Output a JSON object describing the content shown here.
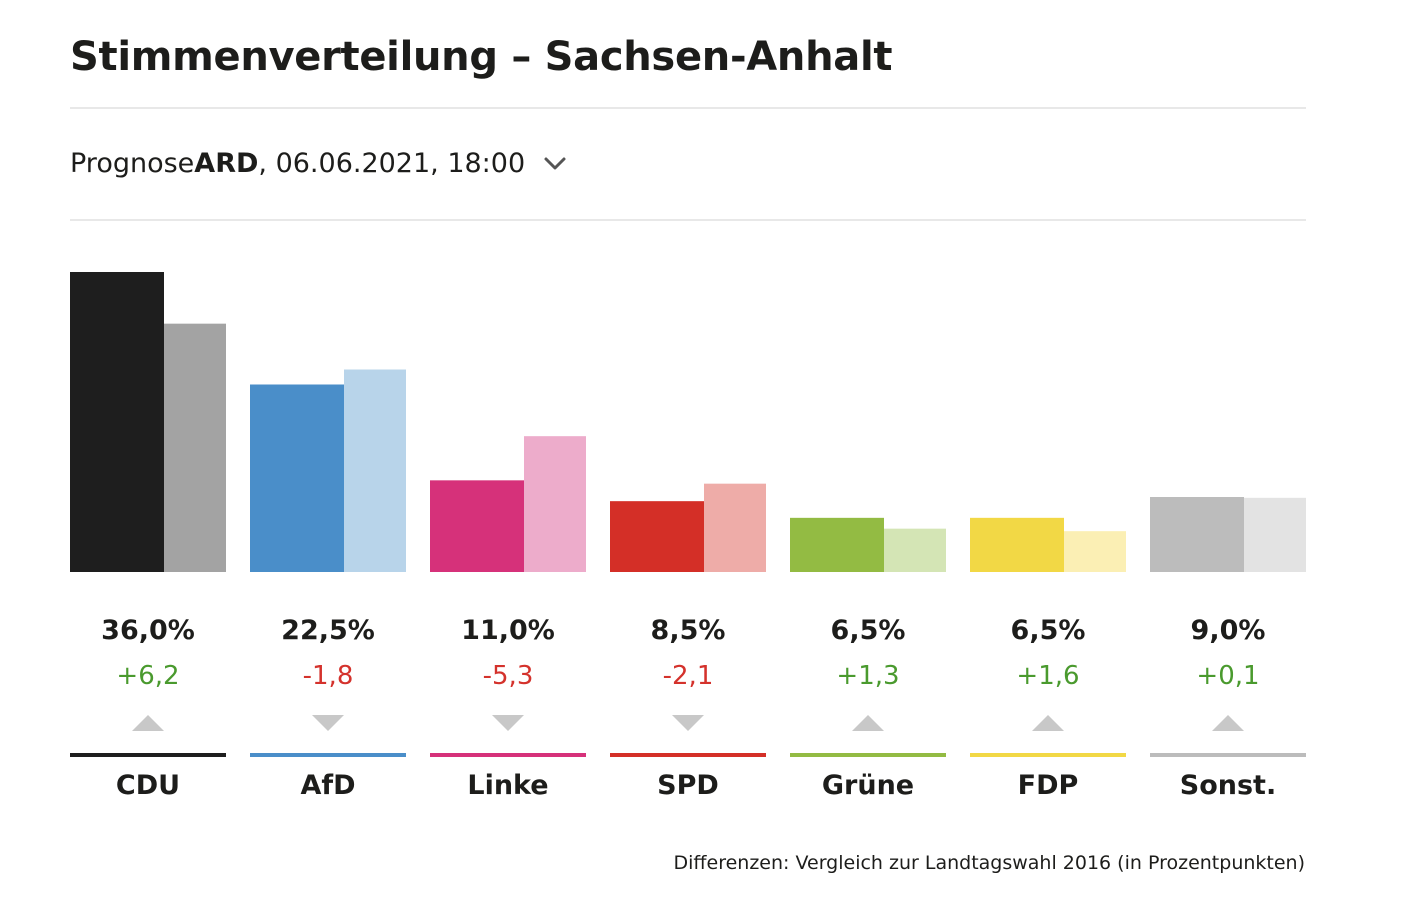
{
  "header": {
    "title": "Stimmenverteilung – Sachsen-Anhalt",
    "selector_prefix": "Prognose ",
    "selector_source": "ARD",
    "selector_suffix": ", 06.06.2021, 18:00"
  },
  "footnote": "Differenzen: Vergleich zur Landtagswahl 2016 (in Prozentpunkten)",
  "colors": {
    "positive": "#4a9a2e",
    "negative": "#d4322c",
    "arrow": "#c8c8c8"
  },
  "chart_data": {
    "type": "bar",
    "title": "Stimmenverteilung – Sachsen-Anhalt",
    "categories": [
      "CDU",
      "AfD",
      "Linke",
      "SPD",
      "Grüne",
      "FDP",
      "Sonst."
    ],
    "series": [
      {
        "name": "Prognose 2021",
        "values": [
          36.0,
          22.5,
          11.0,
          8.5,
          6.5,
          6.5,
          9.0
        ],
        "labels": [
          "36,0%",
          "22,5%",
          "11,0%",
          "8,5%",
          "6,5%",
          "6,5%",
          "9,0%"
        ],
        "colors": [
          "#1e1e1e",
          "#4a8ec9",
          "#d6317a",
          "#d42f27",
          "#93bb43",
          "#f2d845",
          "#bcbcbc"
        ]
      },
      {
        "name": "Landtagswahl 2016",
        "values": [
          29.8,
          24.3,
          16.3,
          10.6,
          5.2,
          4.9,
          8.9
        ],
        "colors": [
          "#a3a3a3",
          "#b8d4ea",
          "#edaccb",
          "#eeaca8",
          "#d4e5b5",
          "#fbefb4",
          "#e3e3e3"
        ]
      }
    ],
    "differences": [
      6.2,
      -1.8,
      -5.3,
      -2.1,
      1.3,
      1.6,
      0.1
    ],
    "difference_labels": [
      "+6,2",
      "-1,8",
      "-5,3",
      "-2,1",
      "+1,3",
      "+1,6",
      "+0,1"
    ],
    "ylim": [
      0,
      36
    ],
    "xlabel": "",
    "ylabel": ""
  }
}
